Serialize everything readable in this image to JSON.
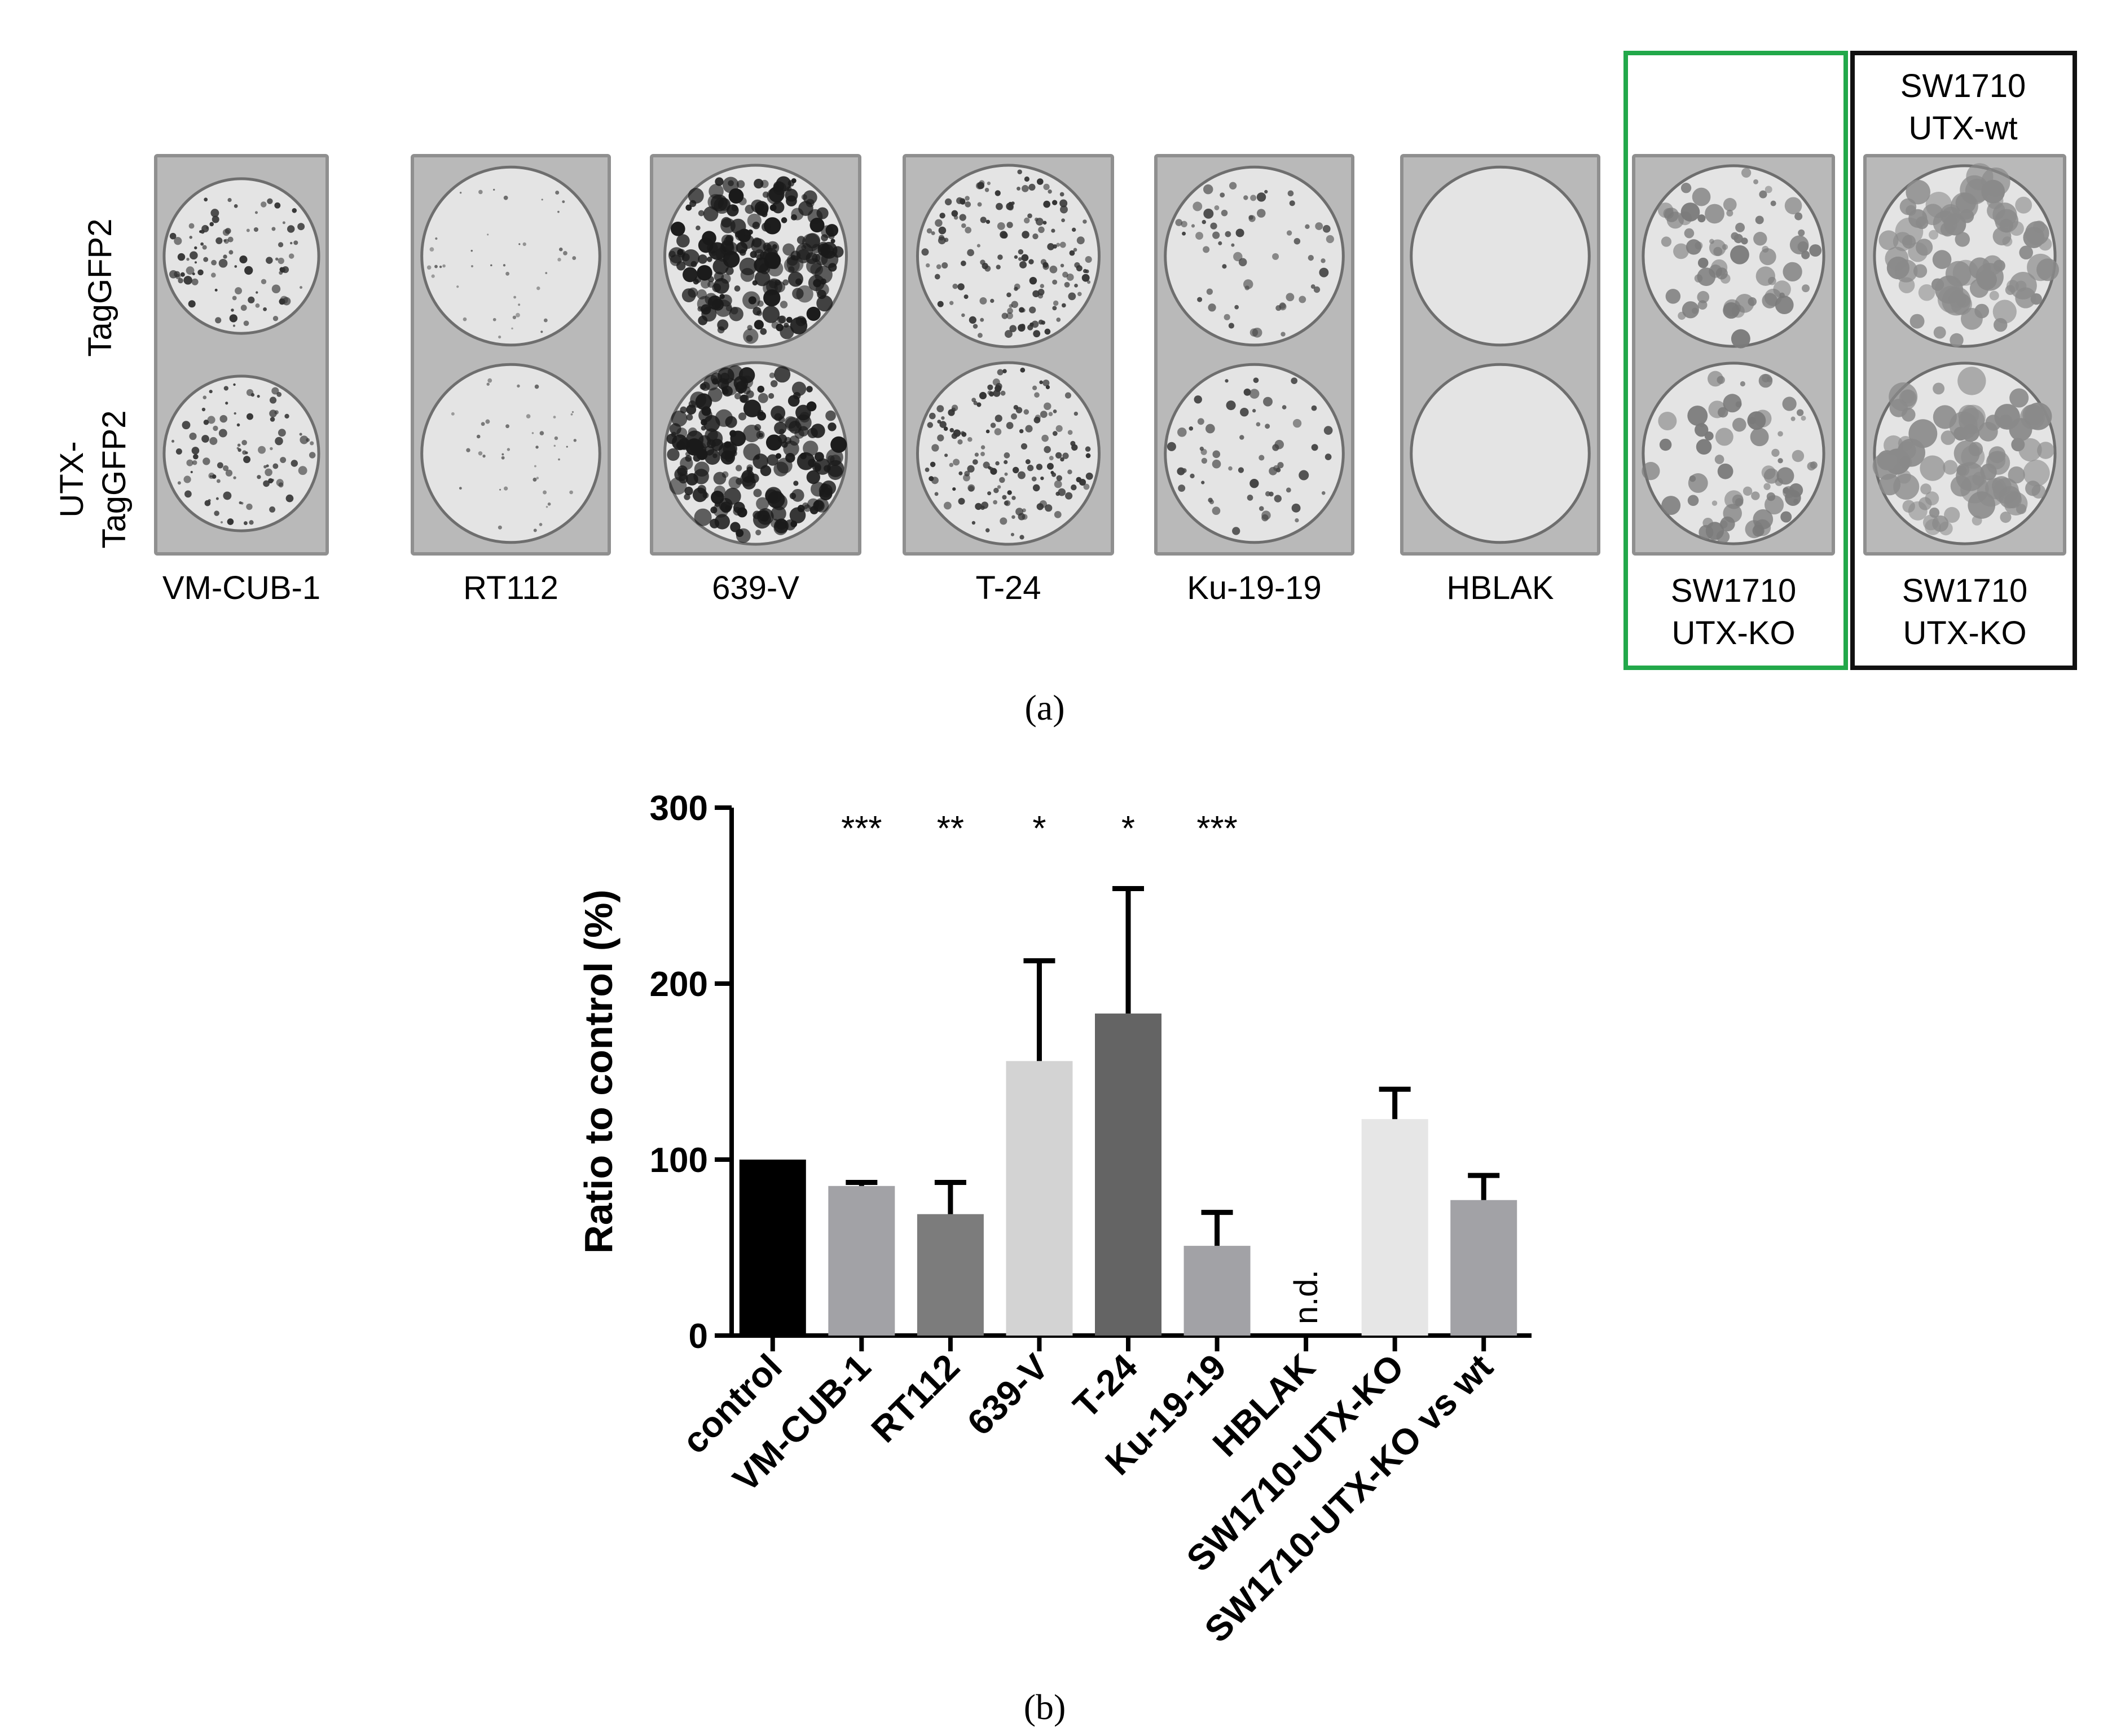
{
  "panel_a": {
    "letter": "(a)",
    "row_labels": [
      "TagGFP2",
      "UTX-\nTagGFP2"
    ],
    "plates": [
      {
        "label": "VM-CUB-1",
        "density": "medium-small"
      },
      {
        "label": "RT112",
        "density": "sparse-tiny"
      },
      {
        "label": "639-V",
        "density": "dense-large"
      },
      {
        "label": "T-24",
        "density": "medium"
      },
      {
        "label": "Ku-19-19",
        "density": "sparse"
      },
      {
        "label": "HBLAK",
        "density": "none"
      },
      {
        "label": "SW1710\nUTX-KO",
        "density": "diffuse"
      },
      {
        "label": "SW1710\nUTX-KO",
        "top_label": "SW1710\nUTX-wt",
        "density": "diffuse-large"
      }
    ],
    "box_colors": {
      "green": "#22a84a",
      "black": "#111111"
    }
  },
  "panel_b": {
    "letter": "(b)"
  },
  "chart_data": {
    "type": "bar",
    "ylabel": "Ratio to control (%)",
    "ylim": [
      0,
      300
    ],
    "yticks": [
      "0",
      "100",
      "200",
      "300"
    ],
    "categories": [
      "control",
      "VM-CUB-1",
      "RT112",
      "639-V",
      "T-24",
      "Ku-19-19",
      "HBLAK",
      "SW1710-UTX-KO",
      "SW1710-UTX-KO vs wt"
    ],
    "values": [
      100,
      85,
      69,
      156,
      183,
      51,
      null,
      123,
      77
    ],
    "error_upper": [
      0,
      2,
      18,
      57,
      71,
      19,
      null,
      17,
      14
    ],
    "colors": [
      "#000000",
      "#a2a2a6",
      "#7c7c7c",
      "#d3d3d3",
      "#646464",
      "#a2a2a6",
      "#ffffff",
      "#e6e6e6",
      "#a2a2a6"
    ],
    "significance": [
      "",
      "***",
      "**",
      "*",
      "*",
      "***",
      "",
      "",
      ""
    ],
    "bar_annotations": [
      "",
      "",
      "",
      "",
      "",
      "",
      "n.d.",
      "",
      ""
    ]
  }
}
